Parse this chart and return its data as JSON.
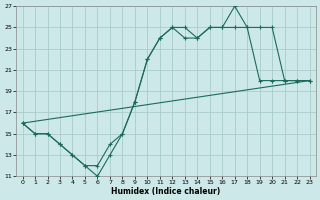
{
  "xlabel": "Humidex (Indice chaleur)",
  "bg_color": "#cce8e8",
  "grid_color": "#aacccc",
  "line_color": "#1a6b5a",
  "xlim": [
    -0.5,
    23.5
  ],
  "ylim": [
    11,
    27
  ],
  "xticks": [
    0,
    1,
    2,
    3,
    4,
    5,
    6,
    7,
    8,
    9,
    10,
    11,
    12,
    13,
    14,
    15,
    16,
    17,
    18,
    19,
    20,
    21,
    22,
    23
  ],
  "yticks": [
    11,
    13,
    15,
    17,
    19,
    21,
    23,
    25,
    27
  ],
  "line1": {
    "x": [
      0,
      1,
      2,
      3,
      4,
      5,
      6,
      7,
      8,
      9,
      10,
      11,
      12,
      13,
      14,
      15,
      16,
      17,
      18,
      19,
      20,
      21,
      22,
      23
    ],
    "y": [
      16,
      15,
      15,
      14,
      13,
      12,
      11,
      13,
      15,
      18,
      22,
      24,
      25,
      25,
      24,
      25,
      25,
      27,
      25,
      25,
      25,
      20,
      20,
      20
    ],
    "marker": true
  },
  "line2": {
    "x": [
      0,
      1,
      2,
      3,
      4,
      5,
      6,
      7,
      8,
      9,
      10,
      11,
      12,
      13,
      14,
      15,
      16,
      17,
      18,
      19,
      20,
      21,
      22,
      23
    ],
    "y": [
      16,
      15,
      15,
      14,
      13,
      12,
      12,
      14,
      15,
      18,
      22,
      24,
      25,
      24,
      24,
      25,
      25,
      25,
      25,
      20,
      20,
      20,
      20,
      20
    ],
    "marker": true
  },
  "line3": {
    "x": [
      0,
      23
    ],
    "y": [
      16,
      20
    ],
    "marker": false
  }
}
